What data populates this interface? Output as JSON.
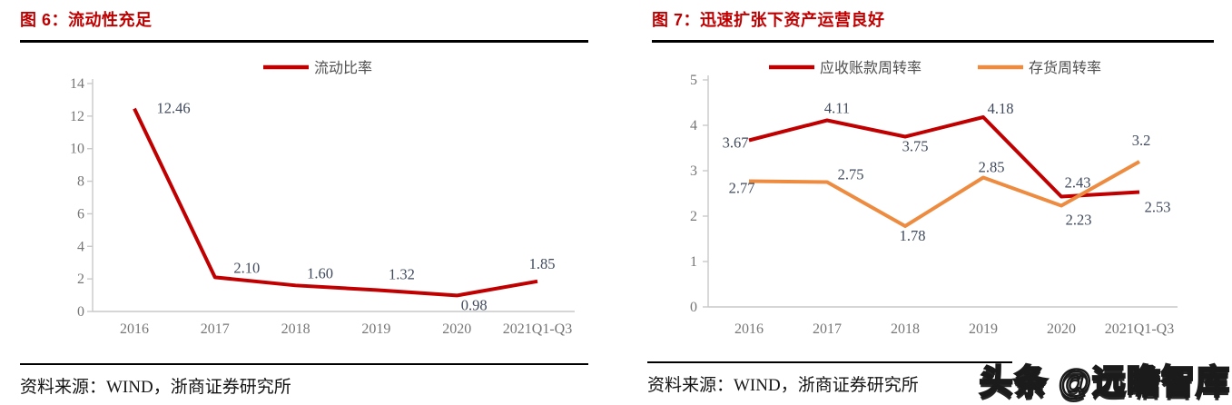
{
  "page": {
    "source_left": "资料来源：WIND，浙商证券研究所",
    "source_right": "资料来源：WIND，浙商证券研究所",
    "watermark": "头条 @远瞻智库"
  },
  "figures": [
    {
      "title": "图 6：流动性充足"
    },
    {
      "title": "图 7：迅速扩张下资产运营良好"
    }
  ],
  "colors": {
    "title_red": "#C00000",
    "series_red": "#C00000",
    "series_orange": "#ED8C40",
    "axis_gray": "#C9C9C9"
  },
  "chart_data": [
    {
      "type": "line",
      "title": "图 6：流动性充足",
      "categories": [
        "2016",
        "2017",
        "2018",
        "2019",
        "2020",
        "2021Q1-Q3"
      ],
      "series": [
        {
          "name": "流动比率",
          "color": "#C00000",
          "values": [
            12.46,
            2.1,
            1.6,
            1.32,
            0.98,
            1.85
          ],
          "labels": [
            "12.46",
            "2.10",
            "1.60",
            "1.32",
            "0.98",
            "1.85"
          ]
        }
      ],
      "xlabel": "",
      "ylabel": "",
      "ylim": [
        0,
        14
      ],
      "ytick_step": 2,
      "grid": false,
      "legend_position": "top"
    },
    {
      "type": "line",
      "title": "图 7：迅速扩张下资产运营良好",
      "categories": [
        "2016",
        "2017",
        "2018",
        "2019",
        "2020",
        "2021Q1-Q3"
      ],
      "series": [
        {
          "name": "应收账款周转率",
          "color": "#C00000",
          "values": [
            3.67,
            4.11,
            3.75,
            4.18,
            2.43,
            2.53
          ],
          "labels": [
            "3.67",
            "4.11",
            "3.75",
            "4.18",
            "2.43",
            "2.53"
          ]
        },
        {
          "name": "存货周转率",
          "color": "#ED8C40",
          "values": [
            2.77,
            2.75,
            1.78,
            2.85,
            2.23,
            3.2
          ],
          "labels": [
            "2.77",
            "2.75",
            "1.78",
            "2.85",
            "2.23",
            "3.2"
          ]
        }
      ],
      "xlabel": "",
      "ylabel": "",
      "ylim": [
        0,
        5
      ],
      "ytick_step": 1,
      "grid": false,
      "legend_position": "top"
    }
  ]
}
